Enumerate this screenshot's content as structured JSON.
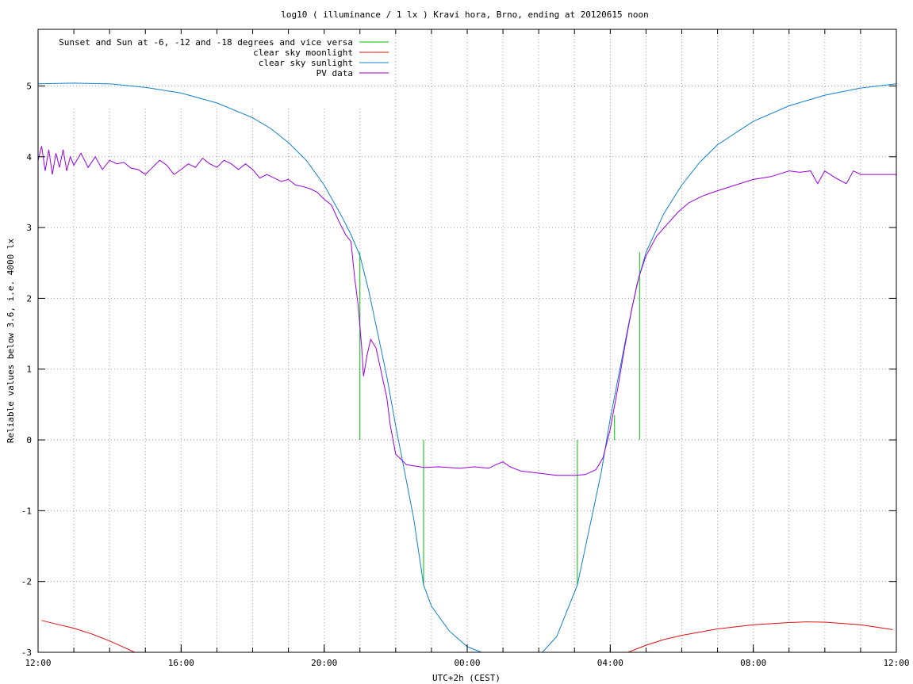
{
  "chart_data": {
    "type": "line",
    "title": "log10 ( illuminance / 1 lx ) Kravi hora, Brno, ending at 20120615 noon",
    "xlabel": "UTC+2h (CEST)",
    "ylabel": "Reliable values below 3.6, i.e. 4000 lx",
    "x_unit": "hours after 12:00 CEST on 20120614",
    "xlim": [
      0,
      24
    ],
    "ylim": [
      -3,
      5.8
    ],
    "x_ticks": [
      {
        "x": 0,
        "label": "12:00"
      },
      {
        "x": 4,
        "label": "16:00"
      },
      {
        "x": 8,
        "label": "20:00"
      },
      {
        "x": 12,
        "label": "00:00"
      },
      {
        "x": 16,
        "label": "04:00"
      },
      {
        "x": 20,
        "label": "08:00"
      },
      {
        "x": 24,
        "label": "12:00"
      }
    ],
    "y_ticks": [
      {
        "y": -3,
        "label": "-3"
      },
      {
        "y": -2,
        "label": "-2"
      },
      {
        "y": -1,
        "label": "-1"
      },
      {
        "y": 0,
        "label": "0"
      },
      {
        "y": 1,
        "label": "1"
      },
      {
        "y": 2,
        "label": "2"
      },
      {
        "y": 3,
        "label": "3"
      },
      {
        "y": 4,
        "label": "4"
      },
      {
        "y": 5,
        "label": "5"
      }
    ],
    "grid": true,
    "legend_position": "top-left",
    "series": [
      {
        "name": "Sunset and Sun at -6, -12 and -18 degrees and vice versa",
        "color": "#00c000",
        "kind": "impulses",
        "points": [
          {
            "x": 9.0,
            "y": 2.65
          },
          {
            "x": 10.78,
            "y": -2.05
          },
          {
            "x": 15.08,
            "y": -2.05
          },
          {
            "x": 16.12,
            "y": 0.35
          },
          {
            "x": 16.82,
            "y": 2.65
          }
        ]
      },
      {
        "name": "clear sky moonlight",
        "color": "#e01010",
        "kind": "line",
        "points": [
          {
            "x": 0.1,
            "y": -2.55
          },
          {
            "x": 0.5,
            "y": -2.6
          },
          {
            "x": 1.0,
            "y": -2.66
          },
          {
            "x": 1.5,
            "y": -2.74
          },
          {
            "x": 2.0,
            "y": -2.84
          },
          {
            "x": 2.4,
            "y": -2.93
          },
          {
            "x": 2.7,
            "y": -3.0
          },
          {
            "x": 16.5,
            "y": -3.0
          },
          {
            "x": 17.0,
            "y": -2.9
          },
          {
            "x": 17.5,
            "y": -2.82
          },
          {
            "x": 18.0,
            "y": -2.76
          },
          {
            "x": 19.0,
            "y": -2.67
          },
          {
            "x": 20.0,
            "y": -2.61
          },
          {
            "x": 21.0,
            "y": -2.58
          },
          {
            "x": 21.5,
            "y": -2.57
          },
          {
            "x": 22.0,
            "y": -2.575
          },
          {
            "x": 23.0,
            "y": -2.61
          },
          {
            "x": 23.9,
            "y": -2.68
          }
        ]
      },
      {
        "name": "clear sky sunlight",
        "color": "#1080d0",
        "kind": "line",
        "points": [
          {
            "x": 0.0,
            "y": 5.03
          },
          {
            "x": 1.0,
            "y": 5.04
          },
          {
            "x": 2.0,
            "y": 5.03
          },
          {
            "x": 3.0,
            "y": 4.98
          },
          {
            "x": 4.0,
            "y": 4.9
          },
          {
            "x": 5.0,
            "y": 4.76
          },
          {
            "x": 6.0,
            "y": 4.55
          },
          {
            "x": 6.5,
            "y": 4.4
          },
          {
            "x": 7.0,
            "y": 4.2
          },
          {
            "x": 7.5,
            "y": 3.95
          },
          {
            "x": 8.0,
            "y": 3.6
          },
          {
            "x": 8.5,
            "y": 3.15
          },
          {
            "x": 8.75,
            "y": 2.9
          },
          {
            "x": 9.0,
            "y": 2.6
          },
          {
            "x": 9.25,
            "y": 2.1
          },
          {
            "x": 9.5,
            "y": 1.5
          },
          {
            "x": 9.75,
            "y": 0.9
          },
          {
            "x": 10.0,
            "y": 0.2
          },
          {
            "x": 10.25,
            "y": -0.45
          },
          {
            "x": 10.5,
            "y": -1.1
          },
          {
            "x": 10.78,
            "y": -2.05
          },
          {
            "x": 11.0,
            "y": -2.35
          },
          {
            "x": 11.5,
            "y": -2.7
          },
          {
            "x": 12.0,
            "y": -2.92
          },
          {
            "x": 12.4,
            "y": -3.0
          },
          {
            "x": 14.1,
            "y": -3.0
          },
          {
            "x": 14.5,
            "y": -2.78
          },
          {
            "x": 15.08,
            "y": -2.05
          },
          {
            "x": 15.5,
            "y": -1.05
          },
          {
            "x": 15.75,
            "y": -0.45
          },
          {
            "x": 16.0,
            "y": 0.3
          },
          {
            "x": 16.25,
            "y": 0.95
          },
          {
            "x": 16.5,
            "y": 1.6
          },
          {
            "x": 16.75,
            "y": 2.2
          },
          {
            "x": 17.0,
            "y": 2.65
          },
          {
            "x": 17.5,
            "y": 3.2
          },
          {
            "x": 18.0,
            "y": 3.6
          },
          {
            "x": 18.5,
            "y": 3.92
          },
          {
            "x": 19.0,
            "y": 4.17
          },
          {
            "x": 20.0,
            "y": 4.5
          },
          {
            "x": 21.0,
            "y": 4.72
          },
          {
            "x": 22.0,
            "y": 4.87
          },
          {
            "x": 23.0,
            "y": 4.97
          },
          {
            "x": 24.0,
            "y": 5.03
          }
        ]
      },
      {
        "name": "PV data",
        "color": "#9900e0",
        "kind": "line",
        "points": [
          {
            "x": 0.0,
            "y": 3.95
          },
          {
            "x": 0.1,
            "y": 4.15
          },
          {
            "x": 0.2,
            "y": 3.8
          },
          {
            "x": 0.3,
            "y": 4.1
          },
          {
            "x": 0.4,
            "y": 3.75
          },
          {
            "x": 0.5,
            "y": 4.05
          },
          {
            "x": 0.6,
            "y": 3.85
          },
          {
            "x": 0.7,
            "y": 4.1
          },
          {
            "x": 0.8,
            "y": 3.8
          },
          {
            "x": 0.9,
            "y": 4.0
          },
          {
            "x": 1.0,
            "y": 3.88
          },
          {
            "x": 1.2,
            "y": 4.05
          },
          {
            "x": 1.4,
            "y": 3.85
          },
          {
            "x": 1.6,
            "y": 4.0
          },
          {
            "x": 1.8,
            "y": 3.82
          },
          {
            "x": 2.0,
            "y": 3.95
          },
          {
            "x": 2.2,
            "y": 3.9
          },
          {
            "x": 2.4,
            "y": 3.92
          },
          {
            "x": 2.6,
            "y": 3.84
          },
          {
            "x": 2.8,
            "y": 3.82
          },
          {
            "x": 3.0,
            "y": 3.75
          },
          {
            "x": 3.2,
            "y": 3.85
          },
          {
            "x": 3.4,
            "y": 3.95
          },
          {
            "x": 3.6,
            "y": 3.88
          },
          {
            "x": 3.8,
            "y": 3.75
          },
          {
            "x": 4.0,
            "y": 3.82
          },
          {
            "x": 4.2,
            "y": 3.9
          },
          {
            "x": 4.4,
            "y": 3.85
          },
          {
            "x": 4.6,
            "y": 3.98
          },
          {
            "x": 4.8,
            "y": 3.9
          },
          {
            "x": 5.0,
            "y": 3.85
          },
          {
            "x": 5.2,
            "y": 3.95
          },
          {
            "x": 5.4,
            "y": 3.9
          },
          {
            "x": 5.6,
            "y": 3.82
          },
          {
            "x": 5.8,
            "y": 3.9
          },
          {
            "x": 6.0,
            "y": 3.82
          },
          {
            "x": 6.2,
            "y": 3.7
          },
          {
            "x": 6.4,
            "y": 3.75
          },
          {
            "x": 6.6,
            "y": 3.7
          },
          {
            "x": 6.8,
            "y": 3.65
          },
          {
            "x": 7.0,
            "y": 3.68
          },
          {
            "x": 7.2,
            "y": 3.6
          },
          {
            "x": 7.4,
            "y": 3.58
          },
          {
            "x": 7.6,
            "y": 3.55
          },
          {
            "x": 7.8,
            "y": 3.5
          },
          {
            "x": 8.0,
            "y": 3.4
          },
          {
            "x": 8.2,
            "y": 3.32
          },
          {
            "x": 8.4,
            "y": 3.1
          },
          {
            "x": 8.6,
            "y": 2.9
          },
          {
            "x": 8.75,
            "y": 2.8
          },
          {
            "x": 8.85,
            "y": 2.3
          },
          {
            "x": 8.95,
            "y": 1.9
          },
          {
            "x": 9.05,
            "y": 1.3
          },
          {
            "x": 9.1,
            "y": 0.9
          },
          {
            "x": 9.2,
            "y": 1.2
          },
          {
            "x": 9.3,
            "y": 1.42
          },
          {
            "x": 9.45,
            "y": 1.3
          },
          {
            "x": 9.6,
            "y": 0.95
          },
          {
            "x": 9.75,
            "y": 0.6
          },
          {
            "x": 9.85,
            "y": 0.2
          },
          {
            "x": 10.0,
            "y": -0.2
          },
          {
            "x": 10.3,
            "y": -0.35
          },
          {
            "x": 10.8,
            "y": -0.39
          },
          {
            "x": 11.2,
            "y": -0.38
          },
          {
            "x": 11.8,
            "y": -0.4
          },
          {
            "x": 12.2,
            "y": -0.38
          },
          {
            "x": 12.6,
            "y": -0.4
          },
          {
            "x": 12.8,
            "y": -0.35
          },
          {
            "x": 13.0,
            "y": -0.31
          },
          {
            "x": 13.2,
            "y": -0.38
          },
          {
            "x": 13.5,
            "y": -0.44
          },
          {
            "x": 14.0,
            "y": -0.47
          },
          {
            "x": 14.5,
            "y": -0.5
          },
          {
            "x": 15.0,
            "y": -0.5
          },
          {
            "x": 15.3,
            "y": -0.49
          },
          {
            "x": 15.6,
            "y": -0.42
          },
          {
            "x": 15.8,
            "y": -0.25
          },
          {
            "x": 16.0,
            "y": 0.15
          },
          {
            "x": 16.2,
            "y": 0.7
          },
          {
            "x": 16.4,
            "y": 1.3
          },
          {
            "x": 16.6,
            "y": 1.85
          },
          {
            "x": 16.8,
            "y": 2.3
          },
          {
            "x": 17.0,
            "y": 2.6
          },
          {
            "x": 17.3,
            "y": 2.88
          },
          {
            "x": 17.6,
            "y": 3.05
          },
          {
            "x": 17.9,
            "y": 3.22
          },
          {
            "x": 18.2,
            "y": 3.35
          },
          {
            "x": 18.6,
            "y": 3.45
          },
          {
            "x": 19.0,
            "y": 3.52
          },
          {
            "x": 19.5,
            "y": 3.6
          },
          {
            "x": 20.0,
            "y": 3.68
          },
          {
            "x": 20.5,
            "y": 3.72
          },
          {
            "x": 21.0,
            "y": 3.8
          },
          {
            "x": 21.3,
            "y": 3.78
          },
          {
            "x": 21.6,
            "y": 3.8
          },
          {
            "x": 21.8,
            "y": 3.62
          },
          {
            "x": 22.0,
            "y": 3.8
          },
          {
            "x": 22.3,
            "y": 3.7
          },
          {
            "x": 22.6,
            "y": 3.62
          },
          {
            "x": 22.8,
            "y": 3.8
          },
          {
            "x": 23.0,
            "y": 3.75
          },
          {
            "x": 23.5,
            "y": 3.75
          },
          {
            "x": 24.0,
            "y": 3.75
          }
        ]
      }
    ]
  }
}
